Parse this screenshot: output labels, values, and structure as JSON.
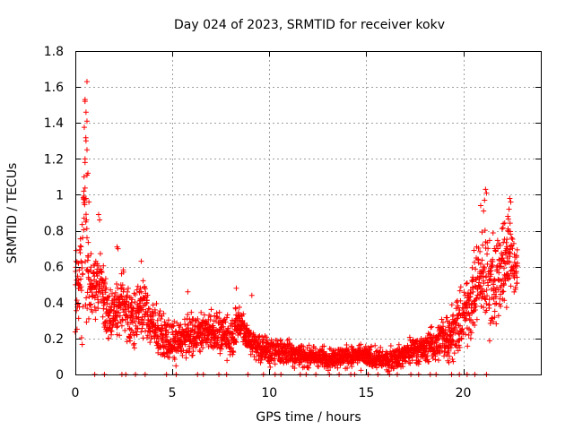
{
  "chart_data": {
    "type": "scatter",
    "title": "Day 024 of 2023, SRMTID for receiver kokv",
    "xlabel": "GPS time / hours",
    "ylabel": "SRMTID / TECUs",
    "xlim": [
      0,
      24.0
    ],
    "ylim": [
      0,
      1.8
    ],
    "grid": true,
    "marker": "+",
    "color": "#ff0000",
    "x_ticks": [
      0,
      5,
      10,
      15,
      20
    ],
    "x_tick_labels": [
      "0",
      "5",
      "10",
      "15",
      "20"
    ],
    "y_ticks": [
      0,
      0.2,
      0.4,
      0.6,
      0.8,
      1.0,
      1.2,
      1.4,
      1.6,
      1.8
    ],
    "y_tick_labels": [
      "0",
      "0.2",
      "0.4",
      "0.6",
      "0.8",
      "1",
      "1.2",
      "1.4",
      "1.6",
      "1.8"
    ],
    "trend": {
      "description": "approximate mean SRMTID level vs time (hours, TECU)",
      "x": [
        0.0,
        0.3,
        0.5,
        0.7,
        1.0,
        1.3,
        1.7,
        2.0,
        2.5,
        3.0,
        3.5,
        4.0,
        5.0,
        6.0,
        7.0,
        8.0,
        8.5,
        9.0,
        10.0,
        11.0,
        12.0,
        13.0,
        14.0,
        15.0,
        16.0,
        17.0,
        17.5,
        18.0,
        19.0,
        19.5,
        20.0,
        20.5,
        21.0,
        21.5,
        22.0,
        22.5,
        22.8
      ],
      "y": [
        0.45,
        0.5,
        0.9,
        0.5,
        0.45,
        0.55,
        0.3,
        0.35,
        0.4,
        0.3,
        0.38,
        0.25,
        0.18,
        0.22,
        0.25,
        0.2,
        0.3,
        0.18,
        0.13,
        0.12,
        0.1,
        0.09,
        0.1,
        0.1,
        0.08,
        0.11,
        0.15,
        0.14,
        0.2,
        0.25,
        0.3,
        0.45,
        0.55,
        0.5,
        0.6,
        0.7,
        0.5
      ]
    },
    "spread": {
      "x": [
        0.0,
        0.5,
        0.7,
        1.0,
        2.0,
        3.5,
        5.0,
        8.0,
        9.0,
        12.0,
        16.0,
        18.0,
        20.0,
        21.0,
        22.0,
        22.8
      ],
      "y": [
        0.15,
        0.35,
        0.2,
        0.12,
        0.1,
        0.1,
        0.07,
        0.08,
        0.06,
        0.04,
        0.04,
        0.05,
        0.12,
        0.18,
        0.18,
        0.12
      ]
    },
    "notable_points": [
      {
        "x": 0.6,
        "y": 1.63
      },
      {
        "x": 0.5,
        "y": 1.53
      },
      {
        "x": 0.5,
        "y": 1.52
      },
      {
        "x": 0.55,
        "y": 1.46
      },
      {
        "x": 0.6,
        "y": 1.41
      },
      {
        "x": 0.55,
        "y": 1.3
      },
      {
        "x": 0.6,
        "y": 1.25
      },
      {
        "x": 0.5,
        "y": 1.2
      },
      {
        "x": 0.5,
        "y": 1.18
      },
      {
        "x": 0.45,
        "y": 1.1
      },
      {
        "x": 0.65,
        "y": 1.12
      },
      {
        "x": 0.55,
        "y": 0.98
      },
      {
        "x": 0.7,
        "y": 0.96
      },
      {
        "x": 1.2,
        "y": 0.89
      },
      {
        "x": 1.25,
        "y": 0.86
      },
      {
        "x": 0.45,
        "y": 0.87
      },
      {
        "x": 21.15,
        "y": 1.03
      },
      {
        "x": 21.2,
        "y": 1.01
      },
      {
        "x": 21.1,
        "y": 0.97
      },
      {
        "x": 20.9,
        "y": 0.94
      },
      {
        "x": 21.05,
        "y": 0.91
      },
      {
        "x": 22.4,
        "y": 0.98
      },
      {
        "x": 22.45,
        "y": 0.96
      },
      {
        "x": 22.3,
        "y": 0.88
      },
      {
        "x": 2.15,
        "y": 0.71
      },
      {
        "x": 2.2,
        "y": 0.7
      },
      {
        "x": 3.4,
        "y": 0.63
      },
      {
        "x": 8.3,
        "y": 0.48
      },
      {
        "x": 5.8,
        "y": 0.46
      },
      {
        "x": 9.1,
        "y": 0.44
      }
    ],
    "zero_points_x": [
      1.0,
      1.5,
      2.4,
      2.6,
      3.1,
      3.6,
      4.7,
      5.2,
      6.3,
      6.6,
      7.4,
      7.8,
      8.9,
      9.7,
      10.3,
      10.6,
      11.6,
      11.9,
      12.4,
      13.1,
      13.6,
      14.2,
      14.4,
      15.1,
      15.6,
      16.2,
      16.6,
      17.3,
      17.7,
      18.3,
      18.6,
      19.4,
      19.8,
      20.2,
      20.6,
      21.2
    ]
  }
}
